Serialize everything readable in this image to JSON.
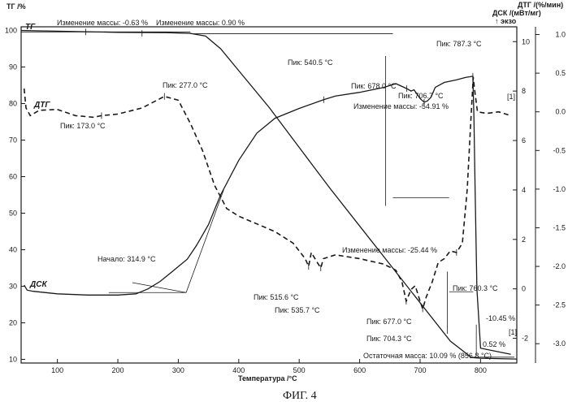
{
  "chart_data": {
    "type": "line",
    "figure_caption": "ФИГ. 4",
    "xlabel": "Температура /°С",
    "xlim": [
      40,
      860
    ],
    "xticks": [
      100,
      200,
      300,
      400,
      500,
      600,
      700,
      800
    ],
    "left_axis": {
      "label": "ТГ /%",
      "ylim": [
        9,
        101
      ],
      "ticks": [
        10,
        20,
        30,
        40,
        50,
        60,
        70,
        80,
        90,
        100
      ]
    },
    "dsc_axis": {
      "label": "ДСК /(мВт/мг)",
      "sublabel": "↑ экзо",
      "ylim": [
        -3.0,
        10.6
      ],
      "ticks": [
        -2,
        0,
        2,
        4,
        6,
        8,
        10
      ]
    },
    "dtg_axis": {
      "label": "ДТГ /(%/мин)",
      "ylim": [
        -3.25,
        1.1
      ],
      "ticks": [
        1.0,
        0.5,
        0.0,
        -0.5,
        -1.0,
        -1.5,
        -2.0,
        -2.5,
        -3.0
      ]
    },
    "series": [
      {
        "name": "ТГ",
        "axis": "left",
        "style": "solid",
        "x": [
          40,
          100,
          200,
          280,
          320,
          345,
          370,
          400,
          450,
          500,
          550,
          600,
          650,
          700,
          750,
          785,
          800,
          830,
          860
        ],
        "y": [
          100,
          99.8,
          99.5,
          99.4,
          99.2,
          98.5,
          95,
          89,
          79,
          68,
          57,
          46.5,
          36,
          25.5,
          15,
          10.5,
          10.3,
          10.2,
          10.1
        ]
      },
      {
        "name": "ДТГ",
        "axis": "dtg",
        "style": "dashed",
        "x": [
          45,
          48,
          55,
          70,
          100,
          130,
          160,
          173,
          200,
          240,
          277,
          300,
          320,
          340,
          360,
          380,
          400,
          430,
          460,
          490,
          510,
          515.6,
          520,
          530,
          535.7,
          540,
          560,
          600,
          640,
          660,
          670,
          677,
          685,
          692,
          700,
          704.3,
          710,
          720,
          730,
          740,
          750,
          760.3,
          770,
          778,
          784,
          788,
          790,
          795,
          810,
          830,
          850
        ],
        "y": [
          0.3,
          0.05,
          -0.05,
          0.02,
          0.03,
          -0.05,
          -0.07,
          -0.05,
          -0.03,
          0.05,
          0.2,
          0.15,
          -0.15,
          -0.5,
          -0.95,
          -1.25,
          -1.35,
          -1.45,
          -1.55,
          -1.7,
          -1.9,
          -2.0,
          -1.82,
          -1.95,
          -2.02,
          -1.9,
          -1.85,
          -1.9,
          -1.97,
          -2.05,
          -2.2,
          -2.45,
          -2.3,
          -2.25,
          -2.45,
          -2.55,
          -2.4,
          -2.2,
          -1.95,
          -1.9,
          -1.8,
          -1.82,
          -1.7,
          -1.0,
          -0.1,
          0.45,
          0.3,
          0.0,
          -0.02,
          0.0,
          -0.05
        ]
      },
      {
        "name": "ДСК",
        "axis": "dsc",
        "style": "solid",
        "x": [
          45,
          50,
          60,
          100,
          150,
          200,
          230,
          250,
          270,
          290,
          314.9,
          330,
          350,
          370,
          400,
          430,
          460,
          500,
          540.5,
          560,
          600,
          640,
          660,
          678,
          685,
          690,
          700,
          706.7,
          712,
          718,
          725,
          740,
          760,
          775,
          787.3,
          789,
          791,
          794,
          800,
          840,
          850
        ],
        "y": [
          0.15,
          -0.05,
          -0.1,
          -0.2,
          -0.25,
          -0.25,
          -0.2,
          0.0,
          0.3,
          0.7,
          1.2,
          1.75,
          2.6,
          3.8,
          5.2,
          6.3,
          6.9,
          7.3,
          7.65,
          7.8,
          7.95,
          8.15,
          8.3,
          8.1,
          8.0,
          8.05,
          7.7,
          7.55,
          7.6,
          7.75,
          8.15,
          8.35,
          8.45,
          8.55,
          8.6,
          7.0,
          4.0,
          0.0,
          -2.4,
          -2.6,
          -2.65
        ]
      }
    ],
    "series_labels": [
      "ТГ",
      "ДТГ",
      "ДСК"
    ],
    "annotations": [
      "Изменение массы: -0.63 %",
      "Изменение массы: 0.90 %",
      "Пик: 540.5 °C",
      "Пик: 678.0 °C",
      "Пик: 706.7 °C",
      "Пик: 787.3 °C",
      "Изменение массы: -54.91 %",
      "Пик: 277.0 °C",
      "Пик: 173.0 °C",
      "Начало: 314.9 °C",
      "Пик: 515.6 °C",
      "Пик: 535.7 °C",
      "Изменение массы: -25.44 %",
      "Пик: 760.3 °C",
      "Пик: 677.0 °C",
      "Пик: 704.3 °C",
      "-10.45 %",
      "0.52 %",
      "Остаточная масса: 10.09 % (856.8 °C)",
      "[1]",
      "[1]"
    ]
  }
}
